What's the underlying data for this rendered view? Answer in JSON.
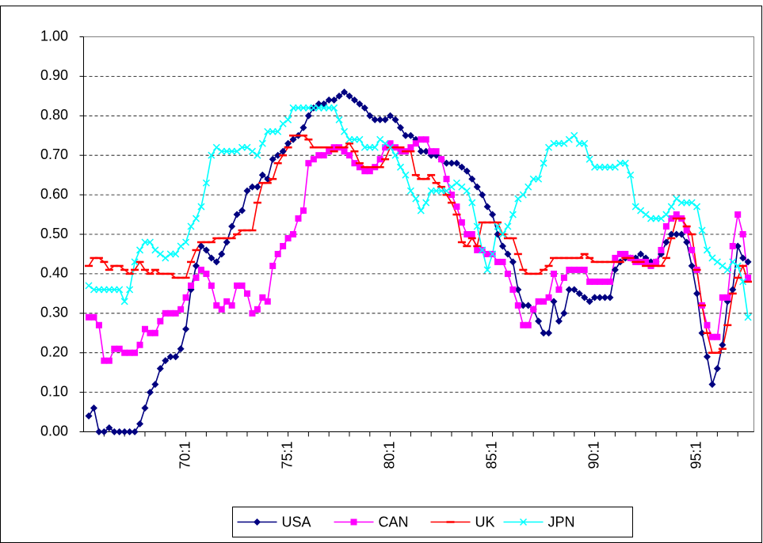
{
  "chart_data": {
    "type": "line",
    "categories": [
      null,
      null,
      null,
      null,
      null,
      null,
      null,
      null,
      null,
      null,
      null,
      null,
      null,
      null,
      null,
      null,
      null,
      null,
      null,
      "70:1",
      null,
      null,
      null,
      null,
      null,
      null,
      null,
      null,
      null,
      null,
      null,
      null,
      null,
      null,
      null,
      null,
      null,
      null,
      null,
      "75:1",
      null,
      null,
      null,
      null,
      null,
      null,
      null,
      null,
      null,
      null,
      null,
      null,
      null,
      null,
      null,
      null,
      null,
      null,
      null,
      "80:1",
      null,
      null,
      null,
      null,
      null,
      null,
      null,
      null,
      null,
      null,
      null,
      null,
      null,
      null,
      null,
      null,
      null,
      null,
      null,
      "85:1",
      null,
      null,
      null,
      null,
      null,
      null,
      null,
      null,
      null,
      null,
      null,
      null,
      null,
      null,
      null,
      null,
      null,
      null,
      null,
      "90:1",
      null,
      null,
      null,
      null,
      null,
      null,
      null,
      null,
      null,
      null,
      null,
      null,
      null,
      null,
      null,
      null,
      null,
      null,
      null,
      "95:1",
      null,
      null,
      null,
      null,
      null,
      null,
      null,
      null,
      null,
      null
    ],
    "series": [
      {
        "name": "USA",
        "color": "#000080",
        "marker": "diamond",
        "values": [
          0.04,
          0.06,
          0,
          0,
          0.01,
          0,
          0,
          0,
          0,
          0,
          0.02,
          0.06,
          0.1,
          0.12,
          0.16,
          0.18,
          0.19,
          0.19,
          0.21,
          0.26,
          0.36,
          0.42,
          0.47,
          0.46,
          0.44,
          0.43,
          0.45,
          0.48,
          0.52,
          0.55,
          0.56,
          0.61,
          0.62,
          0.62,
          0.65,
          0.64,
          0.69,
          0.7,
          0.71,
          0.73,
          0.74,
          0.75,
          0.77,
          0.8,
          0.82,
          0.83,
          0.83,
          0.84,
          0.84,
          0.85,
          0.86,
          0.85,
          0.84,
          0.83,
          0.82,
          0.8,
          0.79,
          0.79,
          0.79,
          0.8,
          0.79,
          0.77,
          0.75,
          0.75,
          0.74,
          0.71,
          0.71,
          0.7,
          0.7,
          0.69,
          0.68,
          0.68,
          0.68,
          0.67,
          0.66,
          0.64,
          0.62,
          0.6,
          0.57,
          0.55,
          0.5,
          0.47,
          0.45,
          0.43,
          0.36,
          0.32,
          0.32,
          0.31,
          0.28,
          0.25,
          0.25,
          0.33,
          0.28,
          0.3,
          0.36,
          0.36,
          0.35,
          0.34,
          0.33,
          0.34,
          0.34,
          0.34,
          0.34,
          0.41,
          0.43,
          0.44,
          0.44,
          0.44,
          0.45,
          0.44,
          0.43,
          0.43,
          0.45,
          0.48,
          0.5,
          0.5,
          0.5,
          0.48,
          0.42,
          0.35,
          0.25,
          0.19,
          0.12,
          0.16,
          0.22,
          0.33,
          0.36,
          0.47,
          0.44,
          0.43
        ]
      },
      {
        "name": "CAN",
        "color": "#FF00FF",
        "marker": "square",
        "values": [
          0.29,
          0.29,
          0.27,
          0.18,
          0.18,
          0.21,
          0.21,
          0.2,
          0.2,
          0.2,
          0.22,
          0.26,
          0.25,
          0.25,
          0.28,
          0.3,
          0.3,
          0.3,
          0.31,
          0.34,
          0.37,
          0.39,
          0.41,
          0.4,
          0.37,
          0.32,
          0.31,
          0.33,
          0.32,
          0.37,
          0.37,
          0.35,
          0.3,
          0.31,
          0.34,
          0.33,
          0.42,
          0.45,
          0.47,
          0.49,
          0.5,
          0.54,
          0.56,
          0.68,
          0.69,
          0.7,
          0.7,
          0.71,
          0.72,
          0.72,
          0.71,
          0.7,
          0.68,
          0.67,
          0.66,
          0.66,
          0.67,
          0.69,
          0.72,
          0.73,
          0.72,
          0.71,
          0.71,
          0.72,
          0.73,
          0.74,
          0.74,
          0.71,
          0.71,
          0.69,
          0.64,
          0.6,
          0.57,
          0.53,
          0.5,
          0.5,
          0.46,
          0.46,
          0.45,
          0.45,
          0.43,
          0.43,
          0.4,
          0.36,
          0.32,
          0.27,
          0.27,
          0.31,
          0.33,
          0.33,
          0.34,
          0.4,
          0.36,
          0.39,
          0.41,
          0.41,
          0.41,
          0.41,
          0.38,
          0.38,
          0.38,
          0.38,
          0.38,
          0.44,
          0.45,
          0.45,
          0.44,
          0.43,
          0.43,
          0.43,
          0.42,
          0.43,
          0.46,
          0.52,
          0.54,
          0.55,
          0.54,
          0.51,
          0.46,
          0.41,
          0.32,
          0.27,
          0.24,
          0.24,
          0.34,
          0.34,
          0.47,
          0.55,
          0.5,
          0.39
        ]
      },
      {
        "name": "UK",
        "color": "#FF0000",
        "marker": "dash",
        "values": [
          0.42,
          0.44,
          0.44,
          0.43,
          0.41,
          0.42,
          0.42,
          0.41,
          0.4,
          0.41,
          0.43,
          0.41,
          0.4,
          0.41,
          0.4,
          0.4,
          0.4,
          0.39,
          0.39,
          0.39,
          0.43,
          0.46,
          0.48,
          0.48,
          0.48,
          0.49,
          0.49,
          0.49,
          0.49,
          0.5,
          0.51,
          0.51,
          0.51,
          0.58,
          0.63,
          0.63,
          0.64,
          0.68,
          0.7,
          0.72,
          0.75,
          0.75,
          0.75,
          0.74,
          0.72,
          0.72,
          0.72,
          0.72,
          0.71,
          0.72,
          0.72,
          0.73,
          0.71,
          0.68,
          0.67,
          0.67,
          0.67,
          0.67,
          0.69,
          0.72,
          0.72,
          0.72,
          0.71,
          0.71,
          0.65,
          0.64,
          0.64,
          0.65,
          0.63,
          0.62,
          0.6,
          0.58,
          0.55,
          0.48,
          0.47,
          0.49,
          0.47,
          0.53,
          0.53,
          0.53,
          0.53,
          0.5,
          0.49,
          0.49,
          0.45,
          0.41,
          0.4,
          0.4,
          0.4,
          0.41,
          0.42,
          0.44,
          0.44,
          0.44,
          0.44,
          0.44,
          0.44,
          0.45,
          0.44,
          0.43,
          0.43,
          0.43,
          0.43,
          0.43,
          0.43,
          0.44,
          0.44,
          0.43,
          0.43,
          0.42,
          0.42,
          0.42,
          0.42,
          0.44,
          0.49,
          0.54,
          0.54,
          0.52,
          0.5,
          0.41,
          0.32,
          0.25,
          0.2,
          0.2,
          0.21,
          0.27,
          0.35,
          0.39,
          0.42,
          0.38
        ]
      },
      {
        "name": "JPN",
        "color": "#00FFFF",
        "marker": "x",
        "values": [
          0.37,
          0.36,
          0.36,
          0.36,
          0.36,
          0.36,
          0.36,
          0.33,
          0.36,
          0.43,
          0.46,
          0.48,
          0.48,
          0.46,
          0.45,
          0.44,
          0.45,
          0.45,
          0.47,
          0.48,
          0.52,
          0.54,
          0.57,
          0.63,
          0.7,
          0.72,
          0.71,
          0.71,
          0.71,
          0.71,
          0.72,
          0.72,
          0.71,
          0.7,
          0.73,
          0.76,
          0.76,
          0.76,
          0.78,
          0.79,
          0.82,
          0.82,
          0.82,
          0.82,
          0.82,
          0.82,
          0.82,
          0.82,
          0.82,
          0.79,
          0.76,
          0.74,
          0.74,
          0.74,
          0.72,
          0.72,
          0.72,
          0.74,
          0.73,
          0.72,
          0.7,
          0.67,
          0.65,
          0.61,
          0.59,
          0.56,
          0.58,
          0.61,
          0.61,
          0.61,
          0.61,
          0.62,
          0.63,
          0.62,
          0.61,
          0.58,
          0.52,
          0.46,
          0.41,
          0.45,
          0.52,
          0.5,
          0.52,
          0.55,
          0.59,
          0.6,
          0.62,
          0.64,
          0.64,
          0.68,
          0.72,
          0.73,
          0.73,
          0.73,
          0.74,
          0.75,
          0.73,
          0.73,
          0.69,
          0.67,
          0.67,
          0.67,
          0.67,
          0.67,
          0.68,
          0.68,
          0.65,
          0.57,
          0.56,
          0.55,
          0.54,
          0.54,
          0.54,
          0.55,
          0.57,
          0.59,
          0.58,
          0.58,
          0.58,
          0.57,
          0.51,
          0.46,
          0.44,
          0.43,
          0.42,
          0.41,
          0.43,
          0.42,
          0.38,
          0.29
        ]
      }
    ],
    "ylim": [
      0,
      1
    ],
    "yticks": [
      {
        "value": 0,
        "label": "0.00"
      },
      {
        "value": 0.1,
        "label": "0.10"
      },
      {
        "value": 0.2,
        "label": "0.20"
      },
      {
        "value": 0.3,
        "label": "0.30"
      },
      {
        "value": 0.4,
        "label": "0.40"
      },
      {
        "value": 0.5,
        "label": "0.50"
      },
      {
        "value": 0.6,
        "label": "0.60"
      },
      {
        "value": 0.7,
        "label": "0.70"
      },
      {
        "value": 0.8,
        "label": "0.80"
      },
      {
        "value": 0.9,
        "label": "0.90"
      },
      {
        "value": 1,
        "label": "1.00"
      }
    ],
    "grid": true,
    "legend": "bottom"
  }
}
